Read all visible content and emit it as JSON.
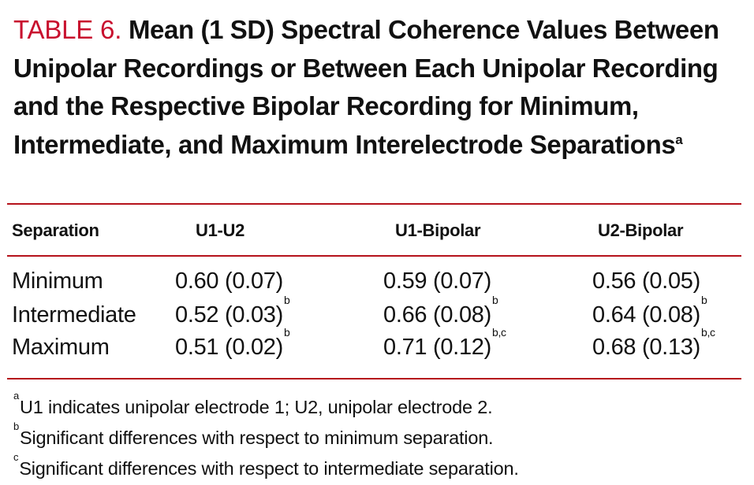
{
  "title": {
    "label": "TABLE 6.",
    "text": "Mean (1 SD) Spectral Coherence Values Between Unipolar Recordings or Between Each Unipolar Recording and the Respective Bipolar Recording for Minimum, Intermediate, and Maximum Interelectrode Separations",
    "footnote_mark": "a"
  },
  "colors": {
    "accent": "#c8102e",
    "rule": "#b5121b",
    "text": "#111111"
  },
  "table": {
    "headers": [
      "Separation",
      "U1-U2",
      "U1-Bipolar",
      "U2-Bipolar"
    ],
    "rows": [
      {
        "label": "Minimum",
        "cells": [
          {
            "value": "0.60 (0.07)",
            "sup": ""
          },
          {
            "value": "0.59 (0.07)",
            "sup": ""
          },
          {
            "value": "0.56 (0.05)",
            "sup": ""
          }
        ]
      },
      {
        "label": "Intermediate",
        "cells": [
          {
            "value": "0.52 (0.03)",
            "sup": "b"
          },
          {
            "value": "0.66 (0.08)",
            "sup": "b"
          },
          {
            "value": "0.64 (0.08)",
            "sup": "b"
          }
        ]
      },
      {
        "label": "Maximum",
        "cells": [
          {
            "value": "0.51 (0.02)",
            "sup": "b"
          },
          {
            "value": "0.71 (0.12)",
            "sup": "b,c"
          },
          {
            "value": "0.68 (0.13)",
            "sup": "b,c"
          }
        ]
      }
    ]
  },
  "footnotes": [
    {
      "mark": "a",
      "text": "U1 indicates unipolar electrode 1; U2, unipolar electrode 2."
    },
    {
      "mark": "b",
      "text": "Significant differences with respect to minimum separation."
    },
    {
      "mark": "c",
      "text": "Significant differences with respect to intermediate separation."
    }
  ]
}
